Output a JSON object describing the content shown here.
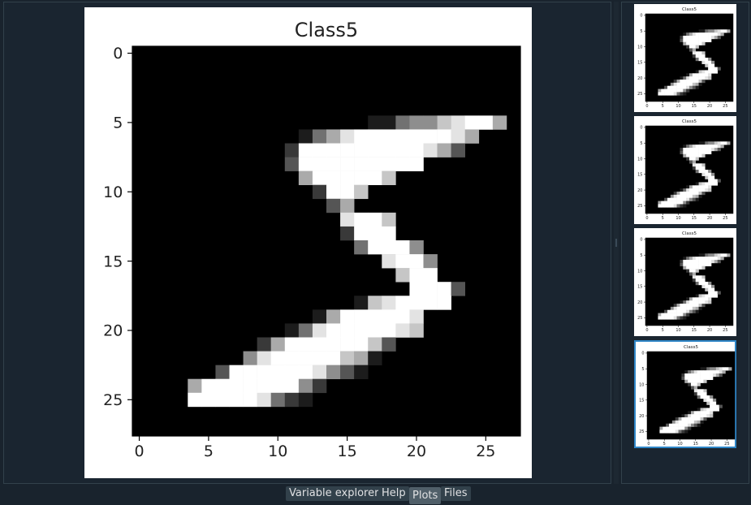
{
  "app": {
    "accent": "#2f86c7"
  },
  "figure": {
    "title": "Class5",
    "chart_data": {
      "type": "heatmap",
      "title": "Class5",
      "colormap": "gray",
      "xlim": [
        -0.5,
        27.5
      ],
      "ylim": [
        27.5,
        -0.5
      ],
      "xticks": [
        0,
        5,
        10,
        15,
        20,
        25
      ],
      "yticks": [
        0,
        5,
        10,
        15,
        20,
        25
      ],
      "rows": [
        "............................",
        "............................",
        "............................",
        "............................",
        "............................",
        ".................1145578996.",
        "............1468999999986...",
        "...........2999999999863....",
        "...........3999999999.......",
        "............6999997.........",
        ".............2997...........",
        "..............36...........",
        "...............8997.........",
        "...............2999.........",
        "................49995.......",
        "..................8995......",
        "...................799......",
        "....................9993....",
        "................1789999.....",
        ".............16999998.......",
        "...........1489999987.......",
        ".........2699999973.........",
        "........5899999761..........",
        "......39999998531...........",
        "....6999999952..............",
        "....999998421...............",
        "............................",
        "............................"
      ]
    }
  },
  "thumbnails": [
    {
      "title": "Class5",
      "selected": false
    },
    {
      "title": "Class5",
      "selected": false
    },
    {
      "title": "Class5",
      "selected": false
    },
    {
      "title": "Class5",
      "selected": true
    }
  ],
  "tabs": [
    {
      "label": "Variable explorer",
      "active": false
    },
    {
      "label": "Help",
      "active": false
    },
    {
      "label": "Plots",
      "active": true
    },
    {
      "label": "Files",
      "active": false
    }
  ]
}
